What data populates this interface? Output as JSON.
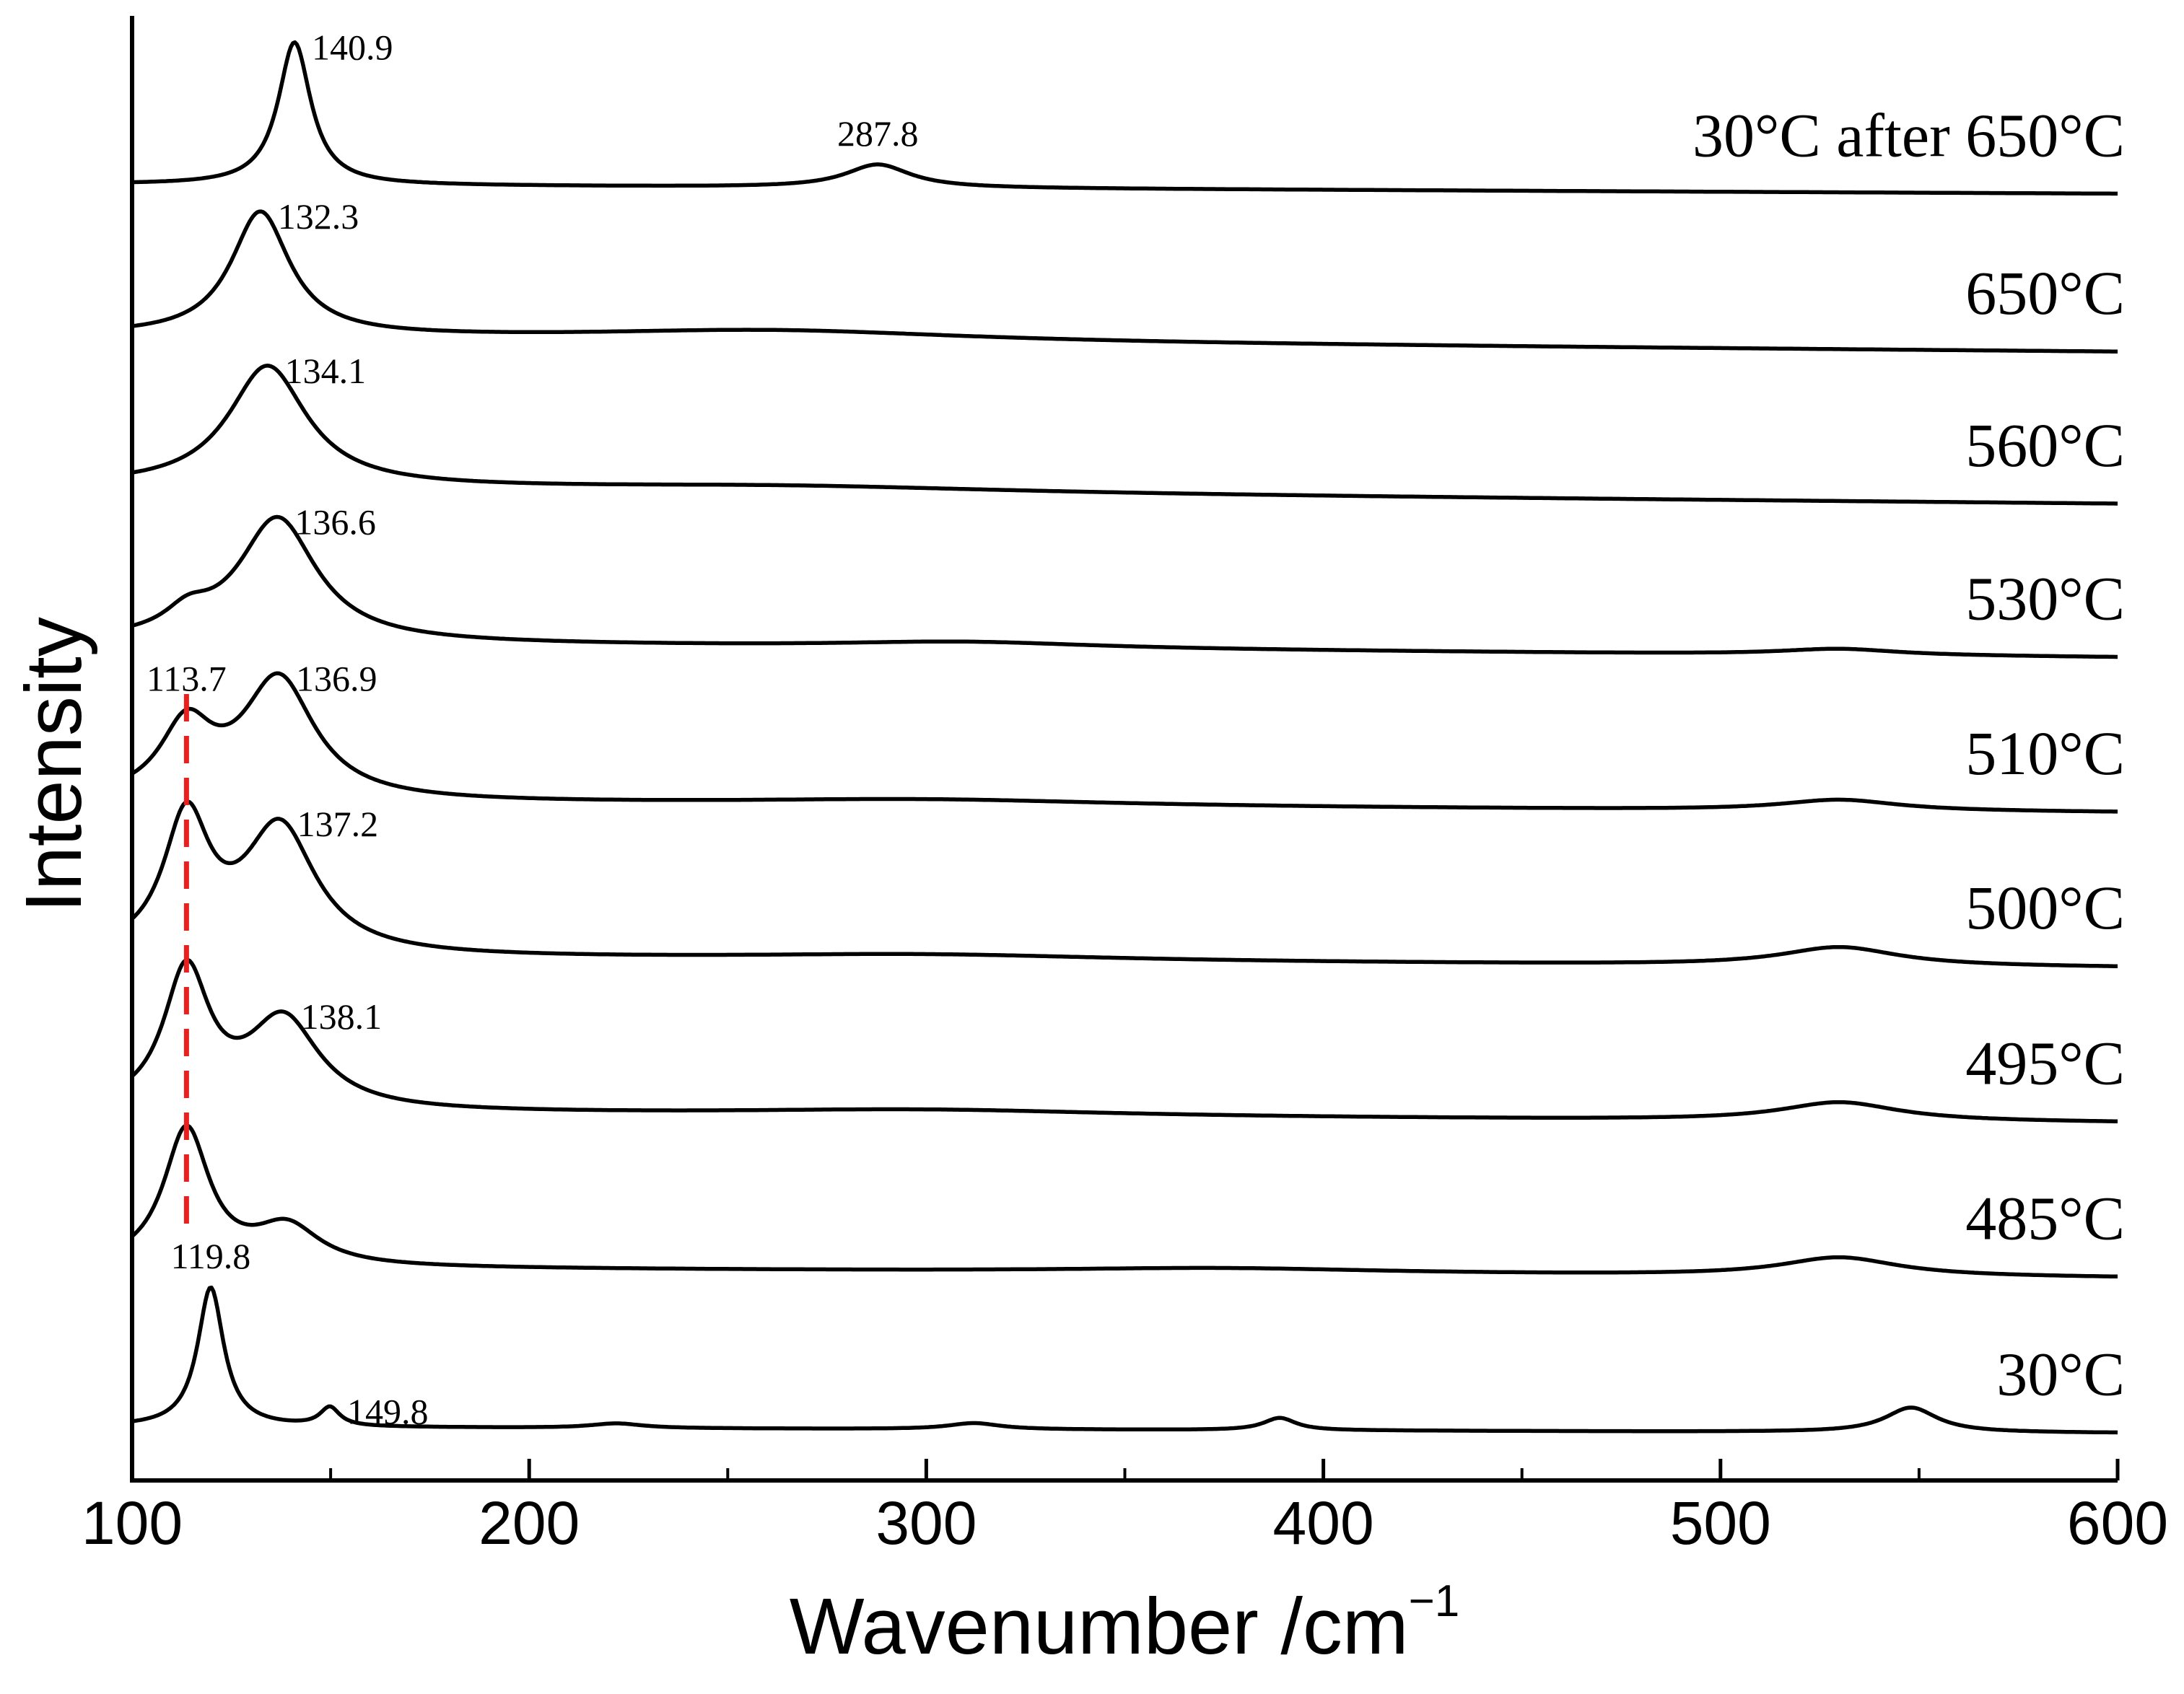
{
  "chart_data": {
    "type": "line",
    "title": "",
    "xlabel": "Wavenumber /cm",
    "xlabel_superscript": "−1",
    "ylabel": "Intensity",
    "xlim": [
      100,
      600
    ],
    "x_ticks": [
      100,
      200,
      300,
      400,
      500,
      600
    ],
    "x_tick_labels": [
      "100",
      "200",
      "300",
      "400",
      "500",
      "600"
    ],
    "x_minor_ticks": [
      150,
      250,
      350,
      450,
      550
    ],
    "grid": false,
    "legend": "none",
    "offset_units": "offset-trace intensity units (stacked traces)",
    "series": [
      {
        "name": "30°C after 650°C",
        "offset": 8.0,
        "baseline": [
          [
            100,
            0.03
          ],
          [
            600,
            -0.03
          ]
        ],
        "peaks": [
          {
            "center": 140.9,
            "height": 0.92,
            "width": 5
          },
          {
            "center": 287.8,
            "height": 0.15,
            "width": 10
          }
        ],
        "peak_labels": [
          {
            "text": "140.9",
            "x": 140.9
          },
          {
            "text": "287.8",
            "x": 287.8
          }
        ]
      },
      {
        "name": "650°C",
        "offset": 7.0,
        "baseline": [
          [
            100,
            0.05
          ],
          [
            600,
            -0.05
          ]
        ],
        "peaks": [
          {
            "center": 132.3,
            "height": 0.8,
            "width": 9
          },
          {
            "center": 262,
            "height": 0.07,
            "width": 60
          }
        ],
        "peak_labels": [
          {
            "text": "132.3",
            "x": 132.3
          }
        ]
      },
      {
        "name": "560°C",
        "offset": 6.0,
        "baseline": [
          [
            100,
            0.08
          ],
          [
            600,
            -0.03
          ]
        ],
        "peaks": [
          {
            "center": 134.1,
            "height": 0.78,
            "width": 12
          },
          {
            "center": 265,
            "height": 0.04,
            "width": 70
          }
        ],
        "peak_labels": [
          {
            "text": "134.1",
            "x": 134.1
          }
        ]
      },
      {
        "name": "530°C",
        "offset": 5.0,
        "baseline": [
          [
            100,
            0.08
          ],
          [
            600,
            -0.02
          ]
        ],
        "peaks": [
          {
            "center": 114,
            "height": 0.13,
            "width": 7
          },
          {
            "center": 136.6,
            "height": 0.8,
            "width": 12
          },
          {
            "center": 310,
            "height": 0.04,
            "width": 40
          },
          {
            "center": 530,
            "height": 0.04,
            "width": 18
          }
        ],
        "peak_labels": [
          {
            "text": "136.6",
            "x": 136.6
          }
        ]
      },
      {
        "name": "510°C",
        "offset": 4.0,
        "baseline": [
          [
            100,
            0.05
          ],
          [
            600,
            -0.02
          ]
        ],
        "peaks": [
          {
            "center": 113.7,
            "height": 0.45,
            "width": 8
          },
          {
            "center": 136.9,
            "height": 0.78,
            "width": 11
          },
          {
            "center": 300,
            "height": 0.04,
            "width": 60
          },
          {
            "center": 530,
            "height": 0.07,
            "width": 18
          }
        ],
        "peak_labels": [
          {
            "text": "113.7",
            "x": 113.7
          },
          {
            "text": "136.9",
            "x": 136.9
          }
        ]
      },
      {
        "name": "500°C",
        "offset": 3.0,
        "baseline": [
          [
            100,
            0.05
          ],
          [
            600,
            -0.02
          ]
        ],
        "peaks": [
          {
            "center": 113.7,
            "height": 0.85,
            "width": 7
          },
          {
            "center": 137.2,
            "height": 0.82,
            "width": 11
          },
          {
            "center": 300,
            "height": 0.04,
            "width": 60
          },
          {
            "center": 530,
            "height": 0.12,
            "width": 18
          }
        ],
        "peak_labels": [
          {
            "text": "137.2",
            "x": 137.2
          }
        ]
      },
      {
        "name": "495°C",
        "offset": 2.0,
        "baseline": [
          [
            100,
            0.05
          ],
          [
            600,
            -0.02
          ]
        ],
        "peaks": [
          {
            "center": 113.7,
            "height": 0.88,
            "width": 7
          },
          {
            "center": 138.1,
            "height": 0.58,
            "width": 11
          },
          {
            "center": 300,
            "height": 0.04,
            "width": 60
          },
          {
            "center": 530,
            "height": 0.12,
            "width": 18
          }
        ],
        "peak_labels": [
          {
            "text": "138.1",
            "x": 138.1
          }
        ]
      },
      {
        "name": "485°C",
        "offset": 1.0,
        "baseline": [
          [
            100,
            0.05
          ],
          [
            600,
            -0.02
          ]
        ],
        "peaks": [
          {
            "center": 113.7,
            "height": 0.88,
            "width": 7
          },
          {
            "center": 139,
            "height": 0.25,
            "width": 10
          },
          {
            "center": 375,
            "height": 0.03,
            "width": 50
          },
          {
            "center": 530,
            "height": 0.12,
            "width": 18
          }
        ],
        "peak_labels": []
      },
      {
        "name": "30°C",
        "offset": 0.0,
        "baseline": [
          [
            100,
            0.02
          ],
          [
            600,
            -0.02
          ]
        ],
        "peaks": [
          {
            "center": 119.8,
            "height": 0.9,
            "width": 4
          },
          {
            "center": 149.8,
            "height": 0.12,
            "width": 3
          },
          {
            "center": 222,
            "height": 0.03,
            "width": 8
          },
          {
            "center": 312,
            "height": 0.04,
            "width": 8
          },
          {
            "center": 389,
            "height": 0.08,
            "width": 5
          },
          {
            "center": 548,
            "height": 0.16,
            "width": 8
          }
        ],
        "peak_labels": [
          {
            "text": "119.8",
            "x": 119.8
          },
          {
            "text": "149.8",
            "x": 149.8
          }
        ]
      }
    ],
    "reference_line": {
      "x": 113.7,
      "style": "dashed",
      "color": "#e8201e"
    }
  },
  "colors": {
    "line": "#000000",
    "reference": "#e8201e"
  }
}
